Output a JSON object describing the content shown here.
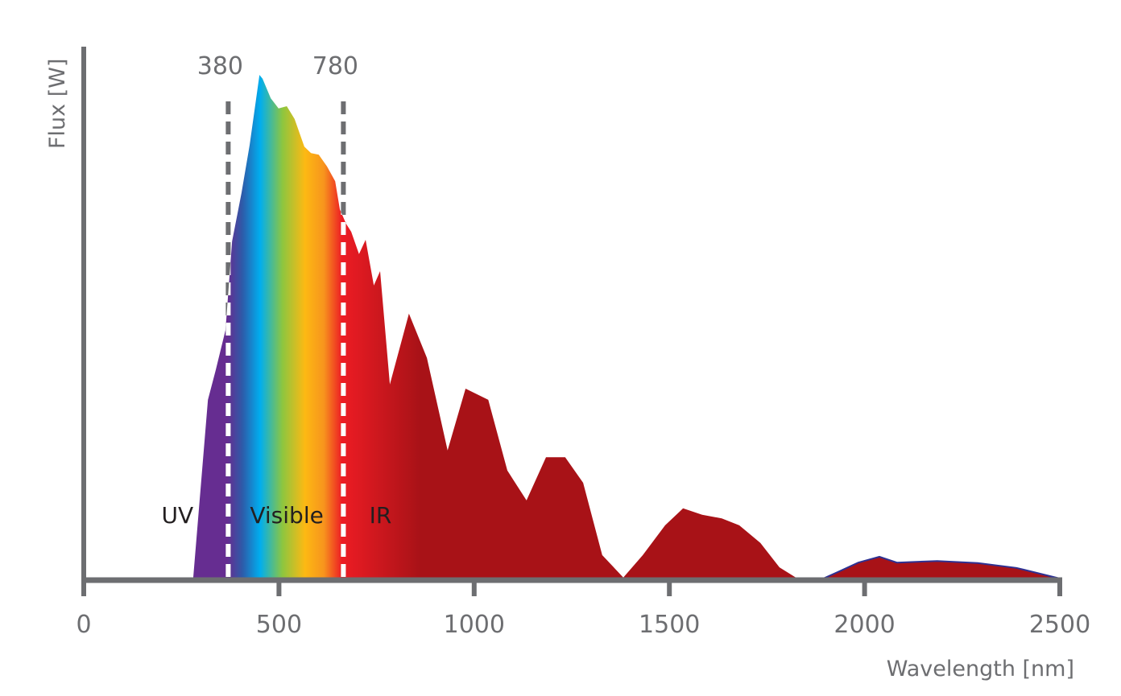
{
  "chart_data": {
    "type": "area",
    "title": "",
    "xlabel": "Wavelength [nm]",
    "ylabel": "Flux [W]",
    "xlim": [
      0,
      2500
    ],
    "ylim": [
      0,
      100
    ],
    "x_ticks": [
      "0",
      "500",
      "1000",
      "1500",
      "2000",
      "2500"
    ],
    "grid": false,
    "series": [
      {
        "points": [
          [
            280,
            0
          ],
          [
            318,
            33.9
          ],
          [
            338,
            39.5
          ],
          [
            363,
            47
          ],
          [
            380,
            63.7
          ],
          [
            404,
            72.8
          ],
          [
            425,
            81.8
          ],
          [
            450,
            95
          ],
          [
            458,
            94.3
          ],
          [
            479,
            90.6
          ],
          [
            499,
            88.7
          ],
          [
            520,
            89.1
          ],
          [
            540,
            86.7
          ],
          [
            565,
            81.5
          ],
          [
            582,
            80.3
          ],
          [
            602,
            80
          ],
          [
            623,
            77.8
          ],
          [
            644,
            75
          ],
          [
            656,
            69.7
          ],
          [
            672,
            67
          ],
          [
            685,
            65.5
          ],
          [
            705,
            61.3
          ],
          [
            722,
            64
          ],
          [
            743,
            55.4
          ],
          [
            759,
            58.1
          ],
          [
            784,
            36.8
          ],
          [
            833,
            50.1
          ],
          [
            879,
            41.8
          ],
          [
            932,
            24.4
          ],
          [
            978,
            36
          ],
          [
            1036,
            33.9
          ],
          [
            1085,
            20.6
          ],
          [
            1134,
            15
          ],
          [
            1184,
            23.1
          ],
          [
            1233,
            23.1
          ],
          [
            1279,
            18.3
          ],
          [
            1328,
            4.7
          ],
          [
            1382,
            0.5
          ],
          [
            1432,
            4.7
          ],
          [
            1489,
            10.3
          ],
          [
            1535,
            13.5
          ],
          [
            1584,
            12.3
          ],
          [
            1634,
            11.6
          ],
          [
            1679,
            10.3
          ],
          [
            1733,
            7
          ],
          [
            1782,
            2.4
          ],
          [
            1828,
            0.3
          ],
          [
            1850,
            0
          ],
          [
            1885,
            0
          ],
          [
            1931,
            1.5
          ],
          [
            1984,
            3.3
          ],
          [
            2038,
            4.4
          ],
          [
            2083,
            3.3
          ],
          [
            2186,
            3.6
          ],
          [
            2290,
            3.2
          ],
          [
            2389,
            2.3
          ],
          [
            2500,
            0.3
          ]
        ]
      }
    ],
    "markers": [
      {
        "label": "380",
        "x": 370
      },
      {
        "label": "780",
        "x": 665
      }
    ],
    "regions": [
      {
        "label": "UV",
        "x": 240
      },
      {
        "label": "Visible",
        "x": 520
      },
      {
        "label": "IR",
        "x": 760
      }
    ],
    "colors": {
      "axis": "#6d6e71",
      "uv": "#662d91",
      "blue": "#2e5aa8",
      "cyan": "#00aeef",
      "green": "#8dc63f",
      "yellow": "#fdb913",
      "orange": "#f7941d",
      "red": "#ed1c24",
      "ir": "#a81217",
      "outline_blue": "#2e3192"
    }
  }
}
